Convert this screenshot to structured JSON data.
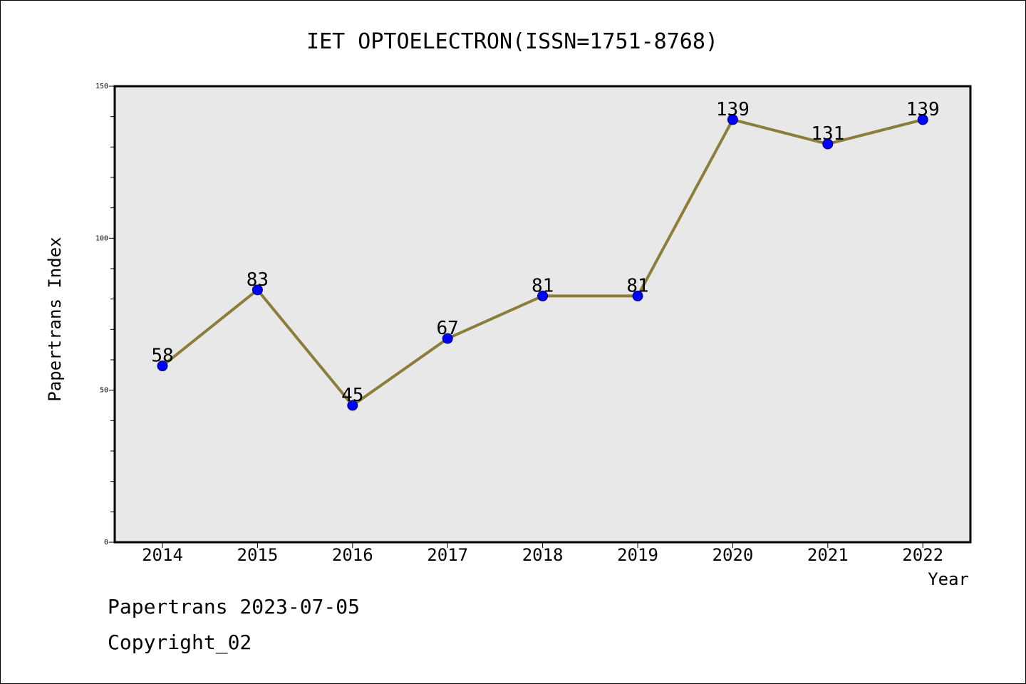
{
  "chart_data": {
    "type": "line",
    "title": "IET OPTOELECTRON(ISSN=1751-8768)",
    "xlabel": "Year",
    "ylabel": "Papertrans Index",
    "categories": [
      "2014",
      "2015",
      "2016",
      "2017",
      "2018",
      "2019",
      "2020",
      "2021",
      "2022"
    ],
    "series": [
      {
        "values": [
          58,
          83,
          45,
          67,
          81,
          81,
          139,
          131,
          139
        ]
      }
    ],
    "ylim": [
      0,
      150
    ],
    "yticks": [
      "0",
      "50",
      "100",
      "150"
    ],
    "grid": false,
    "legend": "none",
    "colors": {
      "line": "#8b7d3a",
      "marker_fill": "#0000ff",
      "marker_edge": "#00006e",
      "plot_background": "#e8e8e8",
      "frame": "#000000"
    }
  },
  "footer": {
    "date_text": "Papertrans 2023-07-05",
    "copyright_text": "Copyright_02"
  }
}
